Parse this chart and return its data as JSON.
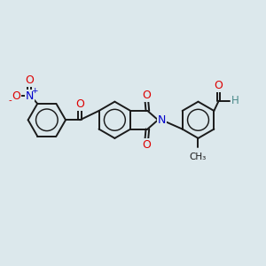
{
  "bg_color": "#e8eef0",
  "bond_color": "#1a1a1a",
  "bond_width": 1.4,
  "atom_colors": {
    "O": "#dd0000",
    "N": "#0000cc",
    "C": "#1a1a1a",
    "H": "#4a8a8a"
  },
  "font_size": 8.5,
  "fig_bg": "#dce8ec"
}
